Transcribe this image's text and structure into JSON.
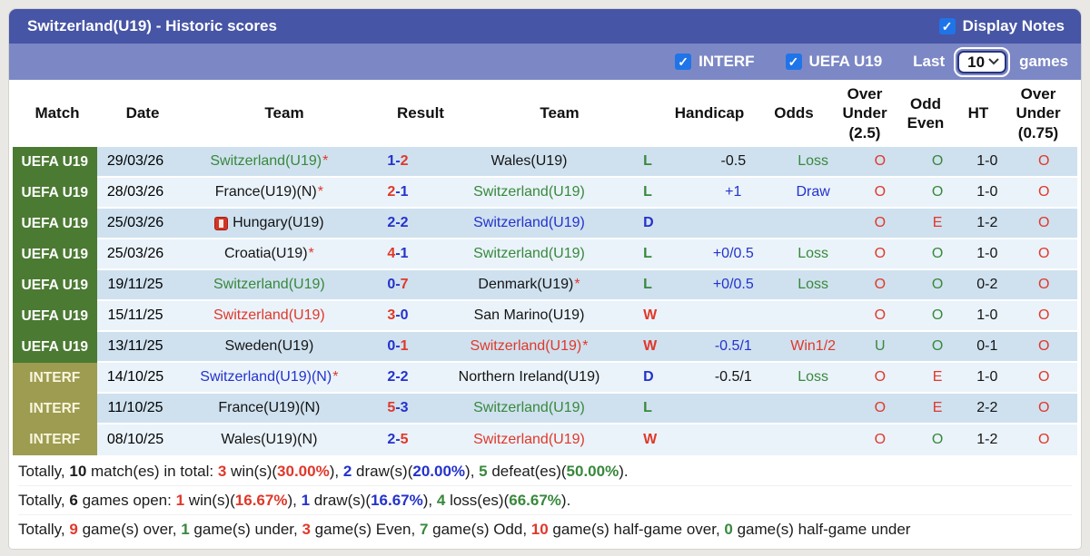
{
  "titlebar": {
    "title": "Switzerland(U19) - Historic scores",
    "display_notes_label": "Display Notes",
    "display_notes_checked": true
  },
  "filterbar": {
    "interf_label": "INTERF",
    "interf_checked": true,
    "uefa_label": "UEFA U19",
    "uefa_checked": true,
    "last_label": "Last",
    "games_label": "games",
    "games_count_selected": "10"
  },
  "colors": {
    "titlebar_bg": "#4655a5",
    "filterbar_bg": "#7c88c5",
    "uefa_league_bg": "#4b7a33",
    "interf_league_bg": "#9d9c51",
    "row_dark": "#cfe1ef",
    "row_light": "#eaf3fa",
    "win_red": "#e0382a",
    "loss_green": "#38883c",
    "draw_blue": "#2432cc",
    "checkbox_blue": "#1f74e8"
  },
  "table": {
    "headers": [
      "Match",
      "Date",
      "Team",
      "Result",
      "Team",
      "Handicap",
      "Odds",
      "Over Under (2.5)",
      "Odd Even",
      "HT",
      "Over Under (0.75)"
    ],
    "rows": [
      {
        "league": "UEFA U19",
        "league_type": "uefa",
        "date": "29/03/26",
        "home": {
          "name": "Switzerland(U19)",
          "color": "green",
          "star": true,
          "icon": false
        },
        "result": {
          "home": "1",
          "away": "2",
          "home_color": "blue",
          "away_color": "red"
        },
        "away": {
          "name": "Wales(U19)",
          "color": "black",
          "star": false
        },
        "wdl": {
          "text": "L",
          "color": "green"
        },
        "handicap": {
          "text": "-0.5",
          "color": "black"
        },
        "odds": {
          "text": "Loss",
          "color": "green"
        },
        "ou25": {
          "text": "O",
          "color": "red"
        },
        "oe": {
          "text": "O",
          "color": "green"
        },
        "ht": "1-0",
        "ou075": {
          "text": "O",
          "color": "red"
        }
      },
      {
        "league": "UEFA U19",
        "league_type": "uefa",
        "date": "28/03/26",
        "home": {
          "name": "France(U19)(N)",
          "color": "black",
          "star": true,
          "icon": false
        },
        "result": {
          "home": "2",
          "away": "1",
          "home_color": "red",
          "away_color": "blue"
        },
        "away": {
          "name": "Switzerland(U19)",
          "color": "green",
          "star": false
        },
        "wdl": {
          "text": "L",
          "color": "green"
        },
        "handicap": {
          "text": "+1",
          "color": "blue"
        },
        "odds": {
          "text": "Draw",
          "color": "blue"
        },
        "ou25": {
          "text": "O",
          "color": "red"
        },
        "oe": {
          "text": "O",
          "color": "green"
        },
        "ht": "1-0",
        "ou075": {
          "text": "O",
          "color": "red"
        }
      },
      {
        "league": "UEFA U19",
        "league_type": "uefa",
        "date": "25/03/26",
        "home": {
          "name": "Hungary(U19)",
          "color": "black",
          "star": false,
          "icon": true
        },
        "result": {
          "home": "2",
          "away": "2",
          "home_color": "blue",
          "away_color": "blue"
        },
        "away": {
          "name": "Switzerland(U19)",
          "color": "blue",
          "star": false
        },
        "wdl": {
          "text": "D",
          "color": "blue"
        },
        "handicap": {
          "text": "",
          "color": "black"
        },
        "odds": {
          "text": "",
          "color": "black"
        },
        "ou25": {
          "text": "O",
          "color": "red"
        },
        "oe": {
          "text": "E",
          "color": "red"
        },
        "ht": "1-2",
        "ou075": {
          "text": "O",
          "color": "red"
        }
      },
      {
        "league": "UEFA U19",
        "league_type": "uefa",
        "date": "25/03/26",
        "home": {
          "name": "Croatia(U19)",
          "color": "black",
          "star": true,
          "icon": false
        },
        "result": {
          "home": "4",
          "away": "1",
          "home_color": "red",
          "away_color": "blue"
        },
        "away": {
          "name": "Switzerland(U19)",
          "color": "green",
          "star": false
        },
        "wdl": {
          "text": "L",
          "color": "green"
        },
        "handicap": {
          "text": "+0/0.5",
          "color": "blue"
        },
        "odds": {
          "text": "Loss",
          "color": "green"
        },
        "ou25": {
          "text": "O",
          "color": "red"
        },
        "oe": {
          "text": "O",
          "color": "green"
        },
        "ht": "1-0",
        "ou075": {
          "text": "O",
          "color": "red"
        }
      },
      {
        "league": "UEFA U19",
        "league_type": "uefa",
        "date": "19/11/25",
        "home": {
          "name": "Switzerland(U19)",
          "color": "green",
          "star": false,
          "icon": false
        },
        "result": {
          "home": "0",
          "away": "7",
          "home_color": "blue",
          "away_color": "red"
        },
        "away": {
          "name": "Denmark(U19)",
          "color": "black",
          "star": true
        },
        "wdl": {
          "text": "L",
          "color": "green"
        },
        "handicap": {
          "text": "+0/0.5",
          "color": "blue"
        },
        "odds": {
          "text": "Loss",
          "color": "green"
        },
        "ou25": {
          "text": "O",
          "color": "red"
        },
        "oe": {
          "text": "O",
          "color": "green"
        },
        "ht": "0-2",
        "ou075": {
          "text": "O",
          "color": "red"
        }
      },
      {
        "league": "UEFA U19",
        "league_type": "uefa",
        "date": "15/11/25",
        "home": {
          "name": "Switzerland(U19)",
          "color": "red",
          "star": false,
          "icon": false
        },
        "result": {
          "home": "3",
          "away": "0",
          "home_color": "red",
          "away_color": "blue"
        },
        "away": {
          "name": "San Marino(U19)",
          "color": "black",
          "star": false
        },
        "wdl": {
          "text": "W",
          "color": "red"
        },
        "handicap": {
          "text": "",
          "color": "black"
        },
        "odds": {
          "text": "",
          "color": "black"
        },
        "ou25": {
          "text": "O",
          "color": "red"
        },
        "oe": {
          "text": "O",
          "color": "green"
        },
        "ht": "1-0",
        "ou075": {
          "text": "O",
          "color": "red"
        }
      },
      {
        "league": "UEFA U19",
        "league_type": "uefa",
        "date": "13/11/25",
        "home": {
          "name": "Sweden(U19)",
          "color": "black",
          "star": false,
          "icon": false
        },
        "result": {
          "home": "0",
          "away": "1",
          "home_color": "blue",
          "away_color": "red"
        },
        "away": {
          "name": "Switzerland(U19)",
          "color": "red",
          "star": true
        },
        "wdl": {
          "text": "W",
          "color": "red"
        },
        "handicap": {
          "text": "-0.5/1",
          "color": "blue"
        },
        "odds": {
          "text": "Win1/2",
          "color": "red"
        },
        "ou25": {
          "text": "U",
          "color": "green"
        },
        "oe": {
          "text": "O",
          "color": "green"
        },
        "ht": "0-1",
        "ou075": {
          "text": "O",
          "color": "red"
        }
      },
      {
        "league": "INTERF",
        "league_type": "interf",
        "date": "14/10/25",
        "home": {
          "name": "Switzerland(U19)(N)",
          "color": "blue",
          "star": true,
          "icon": false
        },
        "result": {
          "home": "2",
          "away": "2",
          "home_color": "blue",
          "away_color": "blue"
        },
        "away": {
          "name": "Northern Ireland(U19)",
          "color": "black",
          "star": false
        },
        "wdl": {
          "text": "D",
          "color": "blue"
        },
        "handicap": {
          "text": "-0.5/1",
          "color": "black"
        },
        "odds": {
          "text": "Loss",
          "color": "green"
        },
        "ou25": {
          "text": "O",
          "color": "red"
        },
        "oe": {
          "text": "E",
          "color": "red"
        },
        "ht": "1-0",
        "ou075": {
          "text": "O",
          "color": "red"
        }
      },
      {
        "league": "INTERF",
        "league_type": "interf",
        "date": "11/10/25",
        "home": {
          "name": "France(U19)(N)",
          "color": "black",
          "star": false,
          "icon": false
        },
        "result": {
          "home": "5",
          "away": "3",
          "home_color": "red",
          "away_color": "blue"
        },
        "away": {
          "name": "Switzerland(U19)",
          "color": "green",
          "star": false
        },
        "wdl": {
          "text": "L",
          "color": "green"
        },
        "handicap": {
          "text": "",
          "color": "black"
        },
        "odds": {
          "text": "",
          "color": "black"
        },
        "ou25": {
          "text": "O",
          "color": "red"
        },
        "oe": {
          "text": "E",
          "color": "red"
        },
        "ht": "2-2",
        "ou075": {
          "text": "O",
          "color": "red"
        }
      },
      {
        "league": "INTERF",
        "league_type": "interf",
        "date": "08/10/25",
        "home": {
          "name": "Wales(U19)(N)",
          "color": "black",
          "star": false,
          "icon": false
        },
        "result": {
          "home": "2",
          "away": "5",
          "home_color": "blue",
          "away_color": "red"
        },
        "away": {
          "name": "Switzerland(U19)",
          "color": "red",
          "star": false
        },
        "wdl": {
          "text": "W",
          "color": "red"
        },
        "handicap": {
          "text": "",
          "color": "black"
        },
        "odds": {
          "text": "",
          "color": "black"
        },
        "ou25": {
          "text": "O",
          "color": "red"
        },
        "oe": {
          "text": "O",
          "color": "green"
        },
        "ht": "1-2",
        "ou075": {
          "text": "O",
          "color": "red"
        }
      }
    ]
  },
  "totals": [
    [
      {
        "t": "Totally, "
      },
      {
        "t": "10",
        "b": true
      },
      {
        "t": " match(es) in total: "
      },
      {
        "t": "3",
        "b": true,
        "c": "red"
      },
      {
        "t": " win(s)("
      },
      {
        "t": "30.00%",
        "b": true,
        "c": "red"
      },
      {
        "t": "), "
      },
      {
        "t": "2",
        "b": true,
        "c": "blue"
      },
      {
        "t": " draw(s)("
      },
      {
        "t": "20.00%",
        "b": true,
        "c": "blue"
      },
      {
        "t": "), "
      },
      {
        "t": "5",
        "b": true,
        "c": "green"
      },
      {
        "t": " defeat(es)("
      },
      {
        "t": "50.00%",
        "b": true,
        "c": "green"
      },
      {
        "t": ")."
      }
    ],
    [
      {
        "t": "Totally, "
      },
      {
        "t": "6",
        "b": true
      },
      {
        "t": " games open: "
      },
      {
        "t": "1",
        "b": true,
        "c": "red"
      },
      {
        "t": " win(s)("
      },
      {
        "t": "16.67%",
        "b": true,
        "c": "red"
      },
      {
        "t": "), "
      },
      {
        "t": "1",
        "b": true,
        "c": "blue"
      },
      {
        "t": " draw(s)("
      },
      {
        "t": "16.67%",
        "b": true,
        "c": "blue"
      },
      {
        "t": "), "
      },
      {
        "t": "4",
        "b": true,
        "c": "green"
      },
      {
        "t": " loss(es)("
      },
      {
        "t": "66.67%",
        "b": true,
        "c": "green"
      },
      {
        "t": ")."
      }
    ],
    [
      {
        "t": "Totally, "
      },
      {
        "t": "9",
        "b": true,
        "c": "red"
      },
      {
        "t": " game(s) over, "
      },
      {
        "t": "1",
        "b": true,
        "c": "green"
      },
      {
        "t": " game(s) under, "
      },
      {
        "t": "3",
        "b": true,
        "c": "red"
      },
      {
        "t": " game(s) Even, "
      },
      {
        "t": "7",
        "b": true,
        "c": "green"
      },
      {
        "t": " game(s) Odd, "
      },
      {
        "t": "10",
        "b": true,
        "c": "red"
      },
      {
        "t": " game(s) half-game over, "
      },
      {
        "t": "0",
        "b": true,
        "c": "green"
      },
      {
        "t": " game(s) half-game under"
      }
    ]
  ]
}
